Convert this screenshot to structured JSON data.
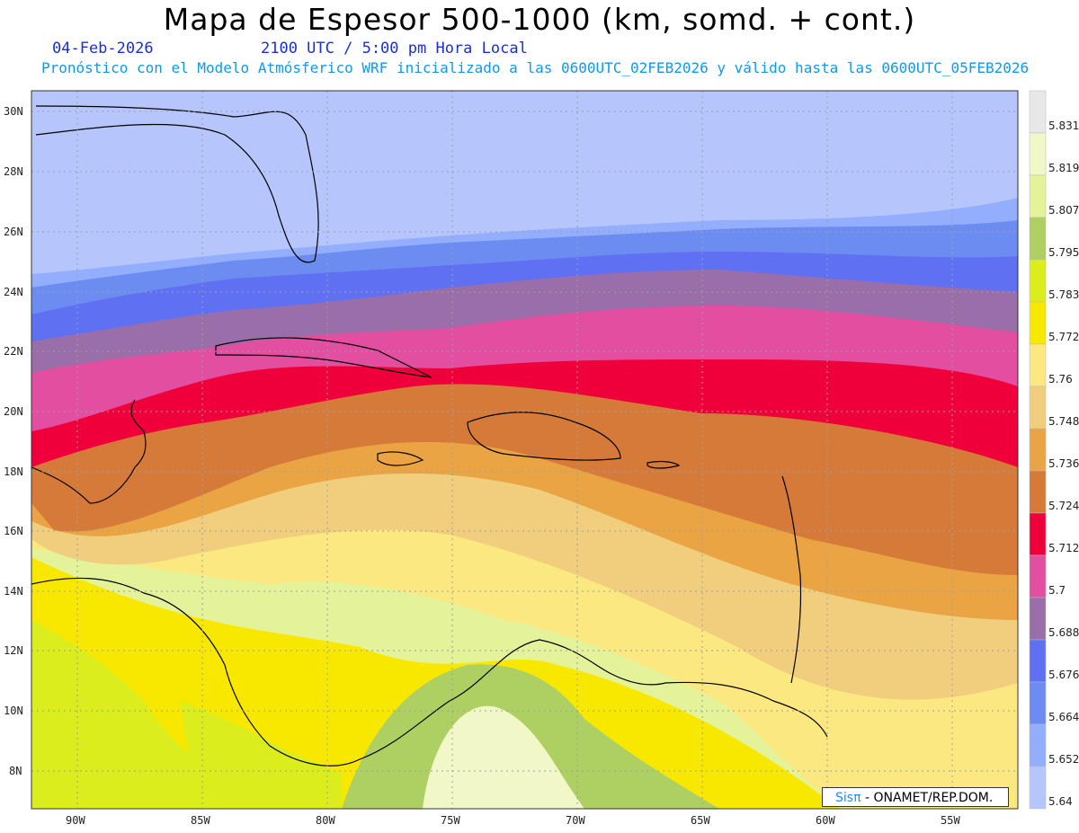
{
  "title": "Mapa de Espesor 500-1000 (km, somd. + cont.)",
  "date": "04-Feb-2026",
  "time": "2100 UTC / 5:00 pm Hora Local",
  "subtitle": "Pronóstico con el Modelo Atmósferico WRF inicializado a las 0600UTC_02FEB2026 y válido hasta las  0600UTC_05FEB2026",
  "credit": {
    "brand": "Sisπ",
    "text": "- ONAMET/REP.DOM."
  },
  "lat_labels": [
    "30N",
    "28N",
    "26N",
    "24N",
    "22N",
    "20N",
    "18N",
    "16N",
    "14N",
    "12N",
    "10N",
    "8N"
  ],
  "lon_labels": [
    "90W",
    "85W",
    "80W",
    "75W",
    "70W",
    "65W",
    "60W",
    "55W"
  ],
  "colorbar": {
    "labels": [
      "5.831",
      "5.819",
      "5.807",
      "5.795",
      "5.783",
      "5.772",
      "5.76",
      "5.748",
      "5.736",
      "5.724",
      "5.712",
      "5.7",
      "5.688",
      "5.676",
      "5.664",
      "5.652",
      "5.64"
    ],
    "colors": [
      "#e8e8e8",
      "#f2f7c8",
      "#e4f29a",
      "#aed062",
      "#dced1e",
      "#f8e800",
      "#fce880",
      "#f0ce7e",
      "#eaa444",
      "#d67a3a",
      "#f0003a",
      "#e24ea0",
      "#9a6ea8",
      "#6070f2",
      "#6c8cf2",
      "#92aefc",
      "#b6c6fc"
    ]
  }
}
